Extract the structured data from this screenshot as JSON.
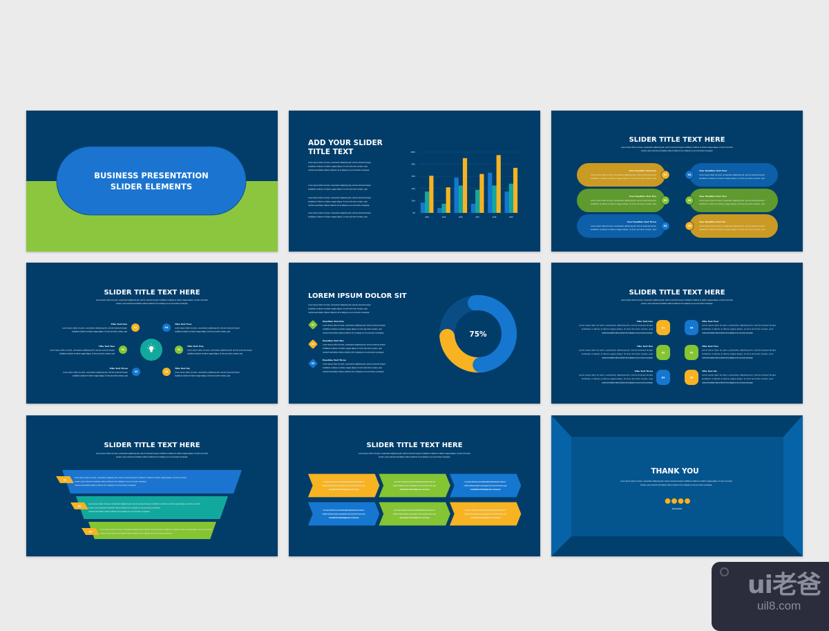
{
  "colors": {
    "background": "#ebebeb",
    "navy": "#023d6a",
    "blue": "#1577d0",
    "green": "#85c432",
    "yellow": "#f7b322",
    "teal": "#13a89e"
  },
  "lorem": {
    "l1": "Lorem ipsum dolor sit amet, consectetur adipiscing elit, sed do eiusmod tempor incididunt ut labore et dolore magna aliqua. Ut enim ad minim",
    "l2": "veniam, quis nostrud exercitation ullamco laboris nisi ut aliquip ex ea commodo consequat.",
    "p1": "Lorem ipsum dolor sit amet, consectetur adipiscing elit, sed do eiusmod tempor",
    "p2": "incididunt ut labore et dolore magna aliqua. Ut enim ad minim veniam, quis",
    "p3": "nostrud exercitation ullamco laboris nisi ut aliquip ex ea commodo consequat."
  },
  "slide1": {
    "title_line1": "BUSINESS PRESENTATION",
    "title_line2": "SLIDER ELEMENTS"
  },
  "slide2": {
    "title_line1": "ADD YOUR SLIDER",
    "title_line2": "TITLE TEXT"
  },
  "slide3": {
    "title": "SLIDER TITLE TEXT HERE",
    "items": [
      {
        "num": "01",
        "label": "Your Headline Text One"
      },
      {
        "num": "02",
        "label": "Your Headline Text Two"
      },
      {
        "num": "03",
        "label": "Your Headline Text Three"
      },
      {
        "num": "04",
        "label": "Your Headline Text Four"
      },
      {
        "num": "05",
        "label": "Your Headline Text Five"
      },
      {
        "num": "06",
        "label": "Your Headline Text Six"
      }
    ]
  },
  "slide4": {
    "title": "SLIDER TITLE TEXT HERE",
    "icon": "lightbulb-icon",
    "items": [
      {
        "num": "01",
        "label": "Title Text One"
      },
      {
        "num": "02",
        "label": "Title Text Two"
      },
      {
        "num": "03",
        "label": "Title Text Three"
      },
      {
        "num": "04",
        "label": "Title Text Four"
      },
      {
        "num": "05",
        "label": "Title Text Five"
      },
      {
        "num": "06",
        "label": "Title Text Six"
      }
    ]
  },
  "slide5": {
    "title": "LOREM IPSUM DOLOR SIT",
    "percent": "75%",
    "percent_value": 75,
    "items": [
      {
        "num": "01",
        "label": "Headline Text One"
      },
      {
        "num": "02",
        "label": "Headline Text Two"
      },
      {
        "num": "03",
        "label": "Headline Text Three"
      }
    ]
  },
  "slide6": {
    "title": "SLIDER TITLE TEXT HERE",
    "items": [
      {
        "num": "01",
        "label": "Title Text One"
      },
      {
        "num": "02",
        "label": "Title Text Two"
      },
      {
        "num": "03",
        "label": "Title Text Three"
      },
      {
        "num": "04",
        "label": "Title Text Four"
      },
      {
        "num": "05",
        "label": "Title Text Five"
      },
      {
        "num": "06",
        "label": "Title Text Six"
      }
    ]
  },
  "slide7": {
    "title": "SLIDER TITLE TEXT HERE",
    "items": [
      {
        "num": "01"
      },
      {
        "num": "02"
      },
      {
        "num": "03"
      }
    ]
  },
  "slide8": {
    "title": "SLIDER TITLE TEXT HERE"
  },
  "slide9": {
    "title": "THANK YOU",
    "handle": "@username",
    "social_icons": [
      "facebook-icon",
      "twitter-icon",
      "instagram-icon",
      "linkedin-icon"
    ]
  },
  "watermark": {
    "logo": "ui老爸",
    "site": "uil8.com"
  },
  "chart_data": {
    "type": "bar",
    "categories": [
      "2014",
      "2015",
      "2016",
      "2017",
      "2018",
      "2019"
    ],
    "yticks": [
      "0%",
      "20%",
      "40%",
      "60%",
      "80%",
      "100%"
    ],
    "ylim": [
      0,
      100
    ],
    "grid": true,
    "series": [
      {
        "color": "#1577d0",
        "values": [
          17,
          8,
          58,
          15,
          66,
          35
        ]
      },
      {
        "color": "#13a89e",
        "values": [
          35,
          15,
          45,
          38,
          45,
          48
        ]
      },
      {
        "color": "#f7b322",
        "values": [
          61,
          42,
          90,
          64,
          95,
          74
        ]
      }
    ]
  }
}
